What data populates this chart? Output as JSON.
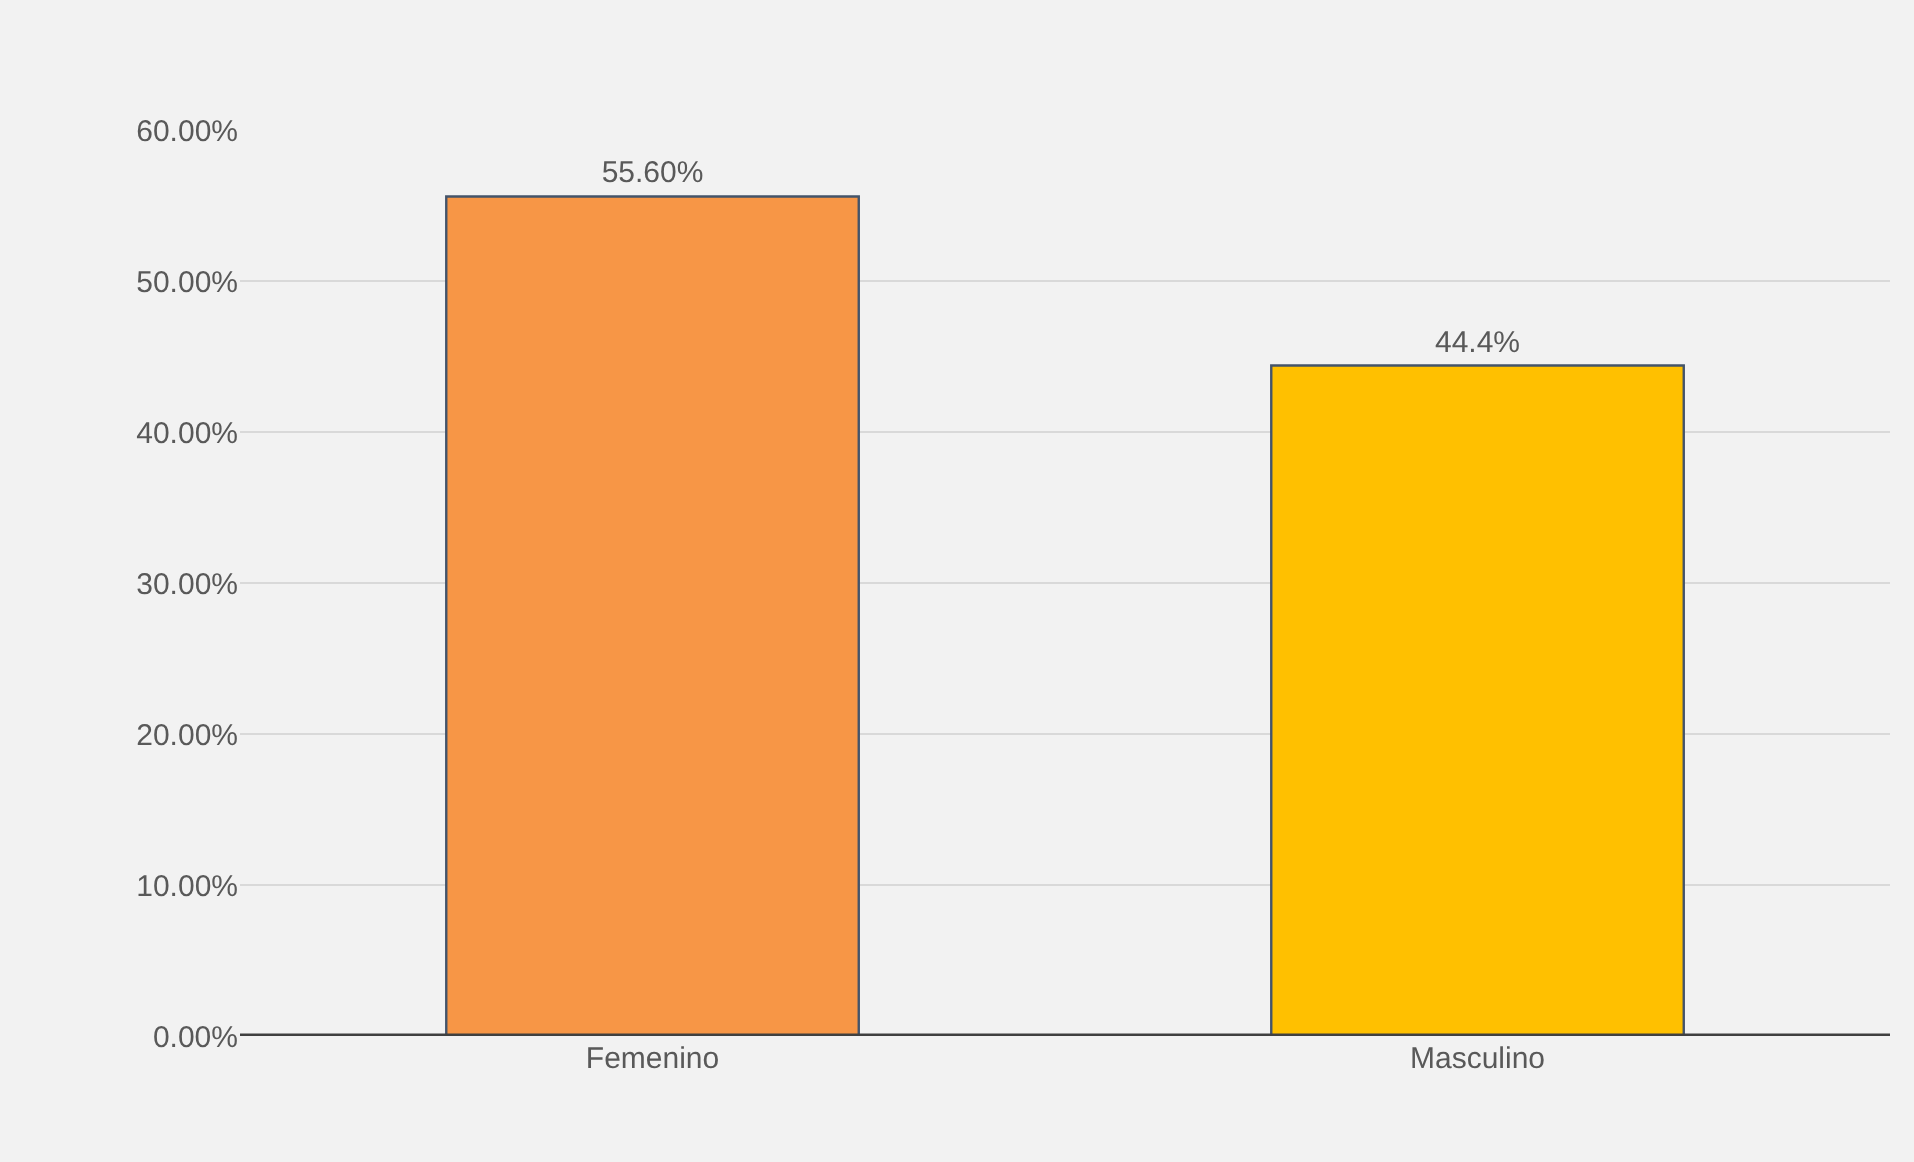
{
  "chart_data": {
    "type": "bar",
    "categories": [
      "Femenino",
      "Masculino"
    ],
    "values": [
      55.6,
      44.4
    ],
    "colors": [
      "#f79646",
      "#ffc000"
    ],
    "value_labels": [
      "55.60%",
      "44.4%"
    ],
    "ylim": [
      0,
      60
    ],
    "yticks": [
      {
        "value": 0,
        "label": "0.00%"
      },
      {
        "value": 10,
        "label": "10.00%"
      },
      {
        "value": 20,
        "label": "20.00%"
      },
      {
        "value": 30,
        "label": "30.00%"
      },
      {
        "value": 40,
        "label": "40.00%"
      },
      {
        "value": 50,
        "label": "50.00%"
      },
      {
        "value": 60,
        "label": "60.00%"
      }
    ],
    "grid": "y",
    "legend": false
  }
}
